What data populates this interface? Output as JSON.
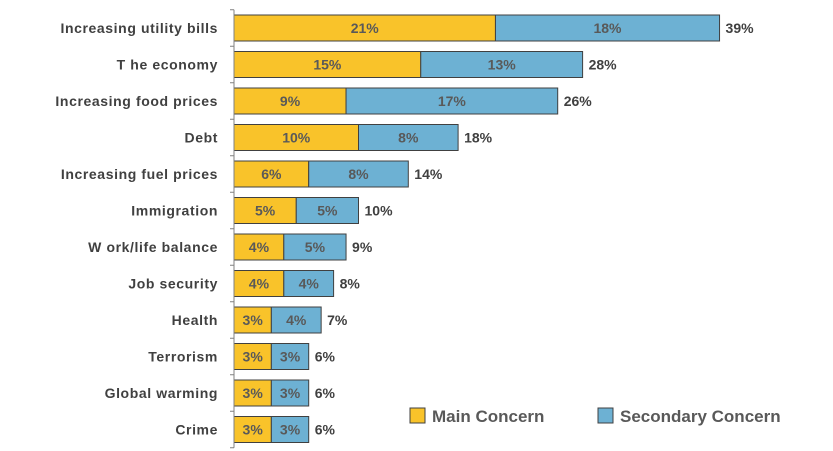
{
  "chart_data": {
    "type": "bar",
    "orientation": "horizontal",
    "stacked": true,
    "categories": [
      "Increasing utility bills",
      "The economy",
      "Increasing food prices",
      "Debt",
      "Increasing fuel prices",
      "Immigration",
      "Work/life balance",
      "Job security",
      "Health",
      "Terrorism",
      "Global warming",
      "Crime"
    ],
    "category_labels": [
      "Increasing utility bills",
      "T he economy",
      "Increasing food prices",
      "Debt",
      "Increasing fuel prices",
      "Immigration",
      "W ork/life balance",
      "Job security",
      "Health",
      "Terrorism",
      "Global warming",
      "Crime"
    ],
    "series": [
      {
        "name": "Main Concern",
        "color": "#F9C32A",
        "values": [
          21,
          15,
          9,
          10,
          6,
          5,
          4,
          4,
          3,
          3,
          3,
          3
        ],
        "labels": [
          "21%",
          "15%",
          "9%",
          "10%",
          "6%",
          "5%",
          "4%",
          "4%",
          "3%",
          "3%",
          "3%",
          "3%"
        ]
      },
      {
        "name": "Secondary Concern",
        "color": "#6DB1D3",
        "values": [
          18,
          13,
          17,
          8,
          8,
          5,
          5,
          4,
          4,
          3,
          3,
          3
        ],
        "labels": [
          "18%",
          "13%",
          "17%",
          "8%",
          "8%",
          "5%",
          "5%",
          "4%",
          "4%",
          "3%",
          "3%",
          "3%"
        ]
      }
    ],
    "totals": [
      39,
      28,
      26,
      18,
      14,
      10,
      9,
      8,
      7,
      6,
      6,
      6
    ],
    "total_labels": [
      "39%",
      "28%",
      "26%",
      "18%",
      "14%",
      "10%",
      "9%",
      "8%",
      "7%",
      "6%",
      "6%",
      "6%"
    ],
    "xlim": [
      0,
      39
    ],
    "grid": false,
    "legend_position": "bottom-right",
    "title": "",
    "xlabel": "",
    "ylabel": ""
  }
}
